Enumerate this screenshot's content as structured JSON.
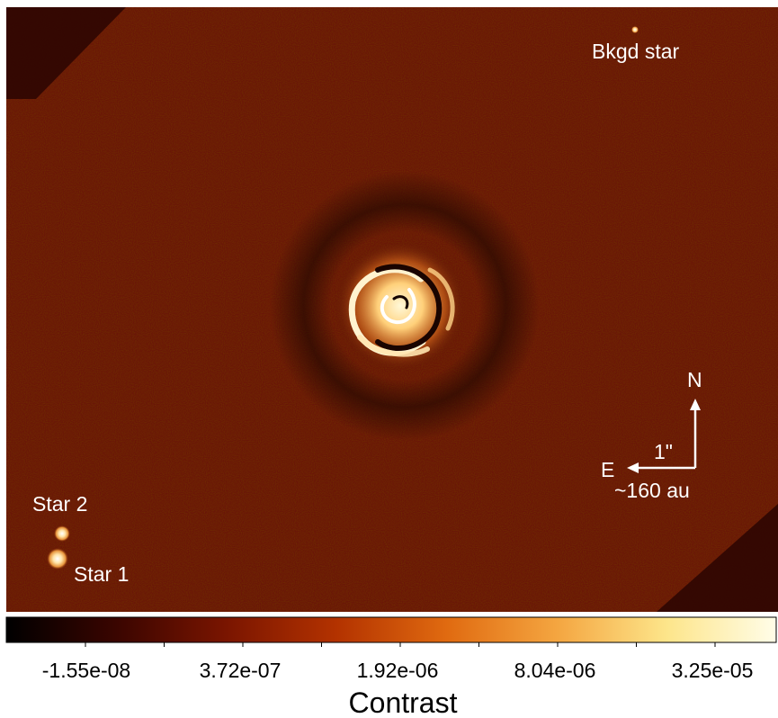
{
  "image": {
    "labels": {
      "background_star": "Bkgd star",
      "star_2": "Star 2",
      "star_1": "Star 1"
    },
    "compass": {
      "north": "N",
      "east": "E",
      "scale_arcsec": "1\"",
      "scale_au": "~160 au"
    }
  },
  "colorbar": {
    "title": "Contrast",
    "tick_labels": [
      "-1.55e-08",
      "3.72e-07",
      "1.92e-06",
      "8.04e-06",
      "3.25e-05"
    ],
    "colormap_stops": [
      "#000000",
      "#3a0500",
      "#7a1500",
      "#b33200",
      "#e06a10",
      "#f4a540",
      "#fde58a",
      "#fffde8"
    ]
  }
}
